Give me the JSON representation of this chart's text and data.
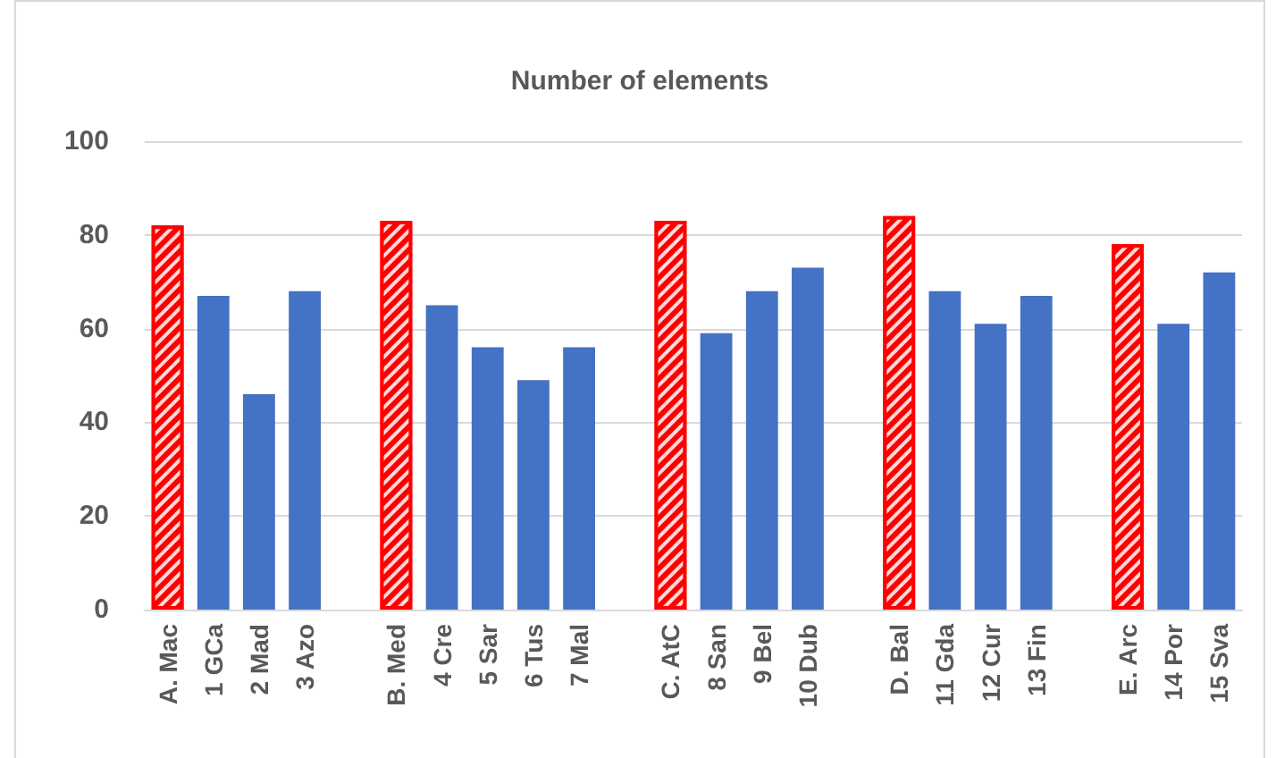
{
  "chart_data": {
    "type": "bar",
    "title": "Number of elements",
    "categories": [
      "A. Mac",
      "1 GCa",
      "2 Mad",
      "3 Azo",
      null,
      "B. Med",
      "4 Cre",
      "5 Sar",
      "6 Tus",
      "7 Mal",
      null,
      "C. AtC",
      "8 San",
      "9 Bel",
      "10 Dub",
      null,
      "D. Bal",
      "11 Gda",
      "12 Cur",
      "13 Fin",
      null,
      "E. Arc",
      "14 Por",
      "15 Sva"
    ],
    "values": [
      82,
      67,
      46,
      68,
      null,
      83,
      65,
      56,
      49,
      56,
      null,
      83,
      59,
      68,
      73,
      null,
      84,
      68,
      61,
      67,
      null,
      78,
      61,
      72
    ],
    "colors": [
      "#ff0000",
      "#4472c4",
      "#4472c4",
      "#4472c4",
      null,
      "#ff0000",
      "#4472c4",
      "#4472c4",
      "#4472c4",
      "#4472c4",
      null,
      "#ff0000",
      "#4472c4",
      "#4472c4",
      "#4472c4",
      null,
      "#ff0000",
      "#4472c4",
      "#4472c4",
      "#4472c4",
      null,
      "#ff0000",
      "#4472c4",
      "#4472c4"
    ],
    "ylim": [
      0,
      100
    ],
    "yticks": [
      0,
      20,
      40,
      60,
      80,
      100
    ],
    "grid": "y"
  }
}
